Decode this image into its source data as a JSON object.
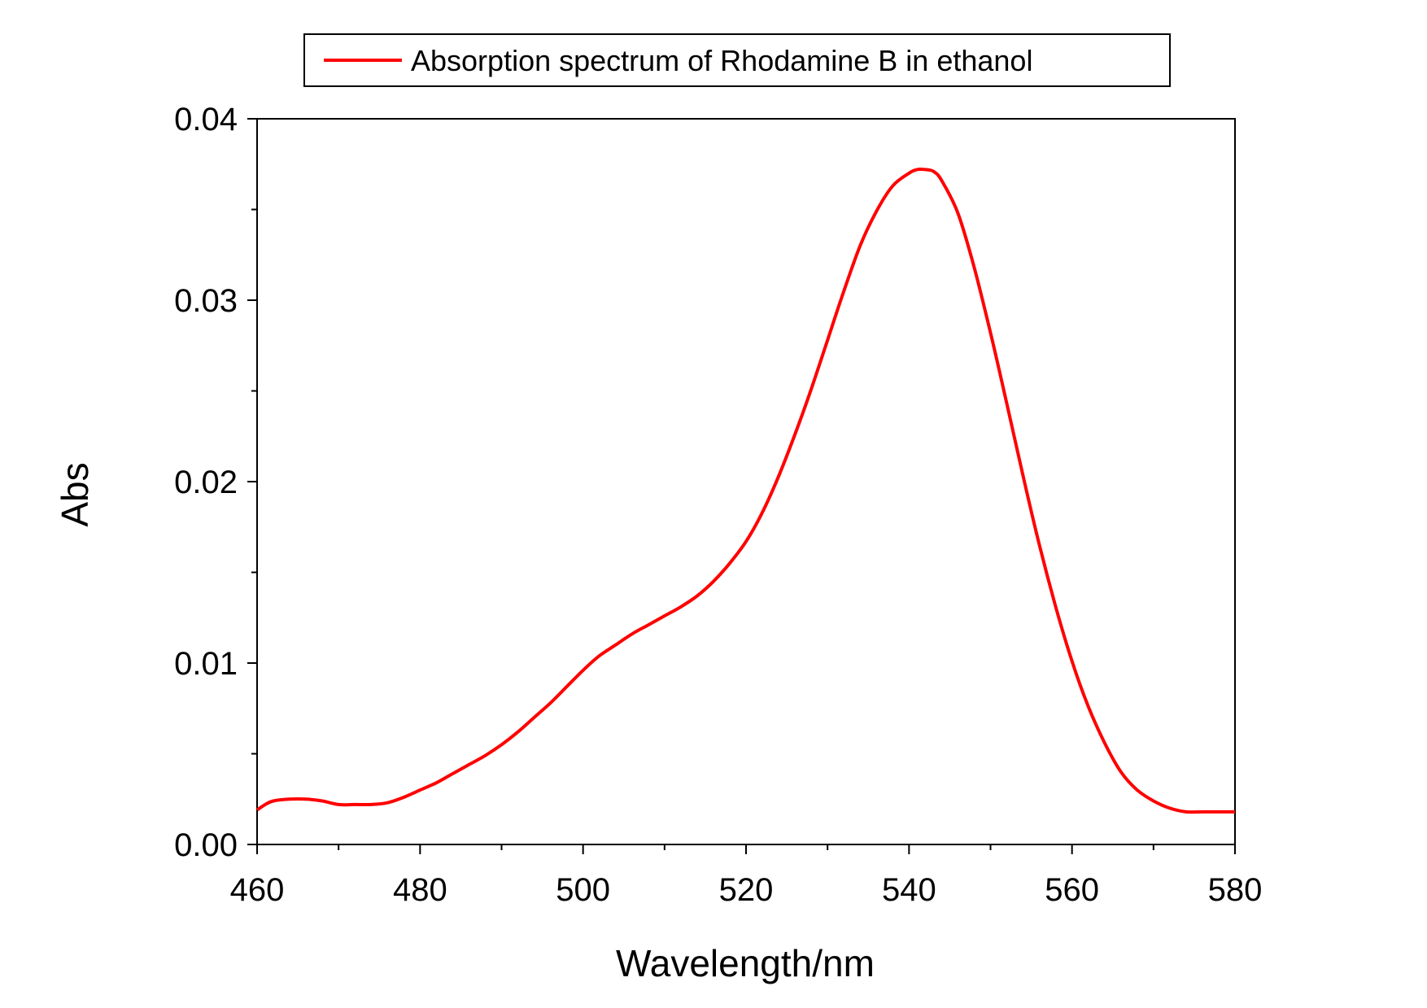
{
  "chart_data": {
    "type": "line",
    "xlabel": "Wavelength/nm",
    "ylabel": "Abs",
    "xlim": [
      460,
      580
    ],
    "ylim": [
      0,
      0.04
    ],
    "x_ticks": [
      460,
      480,
      500,
      520,
      540,
      560,
      580
    ],
    "x_tick_labels": [
      "460",
      "480",
      "500",
      "520",
      "540",
      "560",
      "580"
    ],
    "y_ticks": [
      0,
      0.01,
      0.02,
      0.03,
      0.04
    ],
    "y_tick_labels": [
      "0.00",
      "0.01",
      "0.02",
      "0.03",
      "0.04"
    ],
    "grid": false,
    "legend": {
      "position": "top",
      "border": true
    },
    "series": [
      {
        "name": "Absorption spectrum of Rhodamine B in ethanol",
        "color": "#ff0000",
        "x": [
          460,
          461,
          462,
          464,
          466,
          468,
          470,
          472,
          474,
          476,
          478,
          480,
          482,
          484,
          486,
          488,
          490,
          492,
          494,
          496,
          498,
          500,
          502,
          504,
          506,
          508,
          510,
          512,
          514,
          516,
          518,
          520,
          522,
          524,
          526,
          528,
          530,
          532,
          534,
          536,
          538,
          540,
          541,
          542,
          543,
          544,
          546,
          548,
          550,
          552,
          554,
          556,
          558,
          560,
          562,
          564,
          566,
          568,
          570,
          572,
          574,
          576,
          577,
          578,
          580
        ],
        "y": [
          0.0019,
          0.0022,
          0.0024,
          0.0025,
          0.0025,
          0.0024,
          0.0022,
          0.0022,
          0.0022,
          0.0023,
          0.0026,
          0.003,
          0.0034,
          0.0039,
          0.0044,
          0.0049,
          0.0055,
          0.0062,
          0.007,
          0.0078,
          0.0087,
          0.0096,
          0.0104,
          0.011,
          0.0116,
          0.0121,
          0.0126,
          0.0131,
          0.0137,
          0.0145,
          0.0155,
          0.0167,
          0.0183,
          0.0203,
          0.0226,
          0.0251,
          0.0278,
          0.0305,
          0.033,
          0.0349,
          0.0363,
          0.037,
          0.0372,
          0.0372,
          0.0371,
          0.0366,
          0.0348,
          0.0318,
          0.0282,
          0.0243,
          0.0203,
          0.0165,
          0.0131,
          0.0101,
          0.0076,
          0.0056,
          0.004,
          0.003,
          0.0024,
          0.002,
          0.0018,
          0.0018,
          0.0018,
          0.0018,
          0.0018
        ]
      }
    ]
  }
}
